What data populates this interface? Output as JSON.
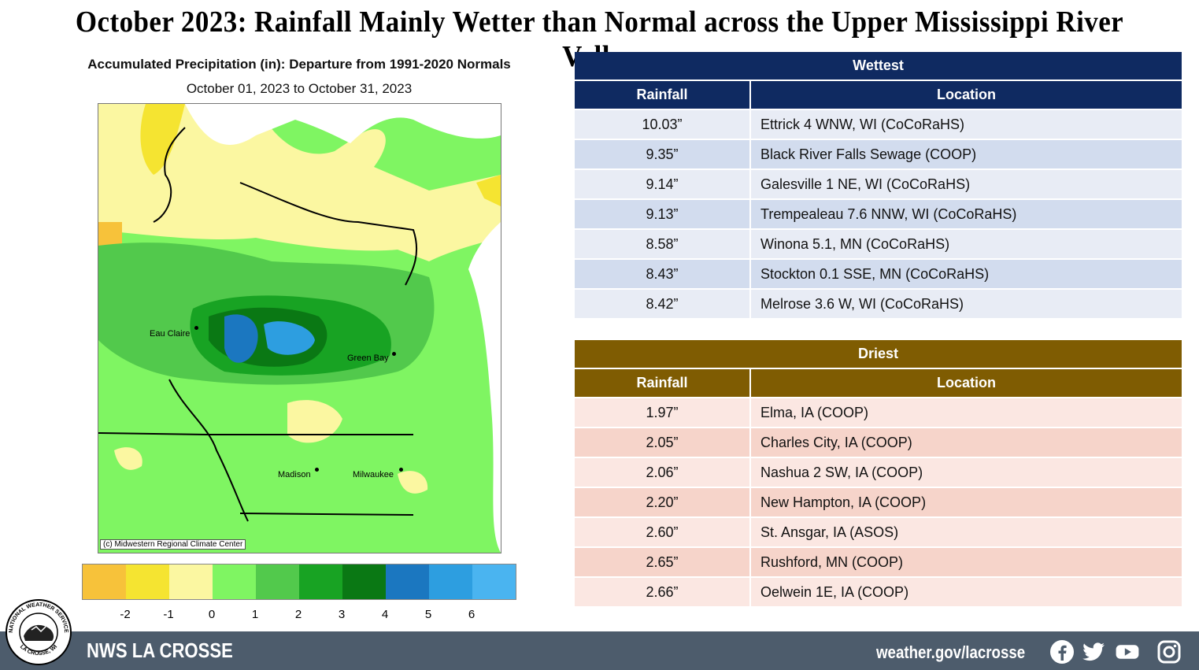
{
  "title": "October 2023:  Rainfall Mainly Wetter than Normal across the Upper Mississippi River Valley",
  "map": {
    "title": "Accumulated Precipitation (in): Departure from 1991-2020 Normals",
    "subtitle": "October 01, 2023 to October 31, 2023",
    "credit": "(c) Midwestern Regional Climate Center",
    "cities": [
      "Eau Claire",
      "Green Bay",
      "Madison",
      "Milwaukee"
    ],
    "legend": {
      "colors": [
        "#f7c23a",
        "#f5e431",
        "#fbf7a1",
        "#7ff562",
        "#52c94c",
        "#18a323",
        "#0a7814",
        "#1b77c0",
        "#2d9ee0",
        "#4ab4f0"
      ],
      "labels": [
        "-2",
        "-1",
        "0",
        "1",
        "2",
        "3",
        "4",
        "5",
        "6"
      ]
    }
  },
  "wettest": {
    "title": "Wettest",
    "col_rainfall": "Rainfall",
    "col_location": "Location",
    "rows": [
      {
        "rainfall": "10.03”",
        "location": "Ettrick 4 WNW, WI (CoCoRaHS)"
      },
      {
        "rainfall": "9.35”",
        "location": "Black River Falls Sewage (COOP)"
      },
      {
        "rainfall": "9.14”",
        "location": "Galesville 1 NE, WI (CoCoRaHS)"
      },
      {
        "rainfall": "9.13”",
        "location": "Trempealeau 7.6 NNW, WI (CoCoRaHS)"
      },
      {
        "rainfall": "8.58”",
        "location": "Winona 5.1, MN (CoCoRaHS)"
      },
      {
        "rainfall": "8.43”",
        "location": "Stockton 0.1 SSE, MN (CoCoRaHS)"
      },
      {
        "rainfall": "8.42”",
        "location": "Melrose 3.6 W, WI (CoCoRaHS)"
      }
    ]
  },
  "driest": {
    "title": "Driest",
    "col_rainfall": "Rainfall",
    "col_location": "Location",
    "rows": [
      {
        "rainfall": "1.97”",
        "location": "Elma, IA (COOP)"
      },
      {
        "rainfall": "2.05”",
        "location": "Charles City, IA (COOP)"
      },
      {
        "rainfall": "2.06”",
        "location": "Nashua 2 SW, IA (COOP)"
      },
      {
        "rainfall": "2.20”",
        "location": "New Hampton, IA (COOP)"
      },
      {
        "rainfall": "2.60”",
        "location": "St. Ansgar, IA (ASOS)"
      },
      {
        "rainfall": "2.65”",
        "location": "Rushford, MN (COOP)"
      },
      {
        "rainfall": "2.66”",
        "location": "Oelwein 1E, IA (COOP)"
      }
    ]
  },
  "footer": {
    "office": "NWS LA CROSSE",
    "url": "weather.gov/lacrosse",
    "logo_text_top": "NATIONAL WEATHER SERVICE",
    "logo_text_bottom": "LA CROSSE, WI",
    "social_icons": [
      "facebook-icon",
      "twitter-icon",
      "youtube-icon",
      "instagram-icon"
    ]
  }
}
